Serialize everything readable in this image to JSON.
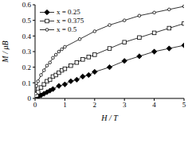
{
  "chart_data": {
    "type": "line",
    "x_label": "H / T",
    "y_label": "M / μB",
    "xlim": [
      0,
      5
    ],
    "xticks": [
      0,
      1,
      2,
      3,
      4,
      5
    ],
    "ylim": [
      0,
      0.6
    ],
    "yticks": [
      0,
      0.1,
      0.2,
      0.3,
      0.4,
      0.5,
      0.6
    ],
    "legend": "upper left",
    "series": [
      {
        "name": "x = 0.25",
        "color": "#000000",
        "marker": "filled_diamond",
        "x": [
          0.1,
          0.2,
          0.3,
          0.4,
          0.5,
          0.6,
          0.8,
          1.0,
          1.2,
          1.4,
          1.6,
          1.8,
          2.0,
          2.5,
          3.0,
          3.5,
          4.0,
          4.5,
          5.0
        ],
        "values": [
          0.01,
          0.02,
          0.03,
          0.04,
          0.05,
          0.06,
          0.08,
          0.09,
          0.11,
          0.12,
          0.14,
          0.15,
          0.17,
          0.2,
          0.24,
          0.27,
          0.3,
          0.32,
          0.34
        ]
      },
      {
        "name": "x = 0.375",
        "color": "#000000",
        "marker": "open_square",
        "x": [
          0.05,
          0.1,
          0.2,
          0.3,
          0.4,
          0.5,
          0.6,
          0.7,
          0.8,
          0.9,
          1.0,
          1.2,
          1.4,
          1.6,
          1.8,
          2.0,
          2.5,
          3.0,
          3.5,
          4.0,
          4.5,
          5.0
        ],
        "values": [
          0.02,
          0.04,
          0.07,
          0.09,
          0.11,
          0.12,
          0.14,
          0.15,
          0.165,
          0.18,
          0.19,
          0.21,
          0.23,
          0.25,
          0.265,
          0.28,
          0.32,
          0.36,
          0.39,
          0.42,
          0.45,
          0.48
        ]
      },
      {
        "name": "x = 0.5",
        "color": "#000000",
        "marker": "open_circle",
        "x": [
          0.02,
          0.05,
          0.1,
          0.2,
          0.3,
          0.4,
          0.5,
          0.6,
          0.7,
          0.8,
          0.9,
          1.0,
          1.5,
          2.0,
          2.5,
          3.0,
          3.5,
          4.0,
          4.5,
          5.0
        ],
        "values": [
          0.03,
          0.08,
          0.11,
          0.15,
          0.18,
          0.21,
          0.23,
          0.26,
          0.28,
          0.3,
          0.315,
          0.33,
          0.38,
          0.43,
          0.47,
          0.5,
          0.53,
          0.55,
          0.57,
          0.59
        ]
      }
    ]
  }
}
